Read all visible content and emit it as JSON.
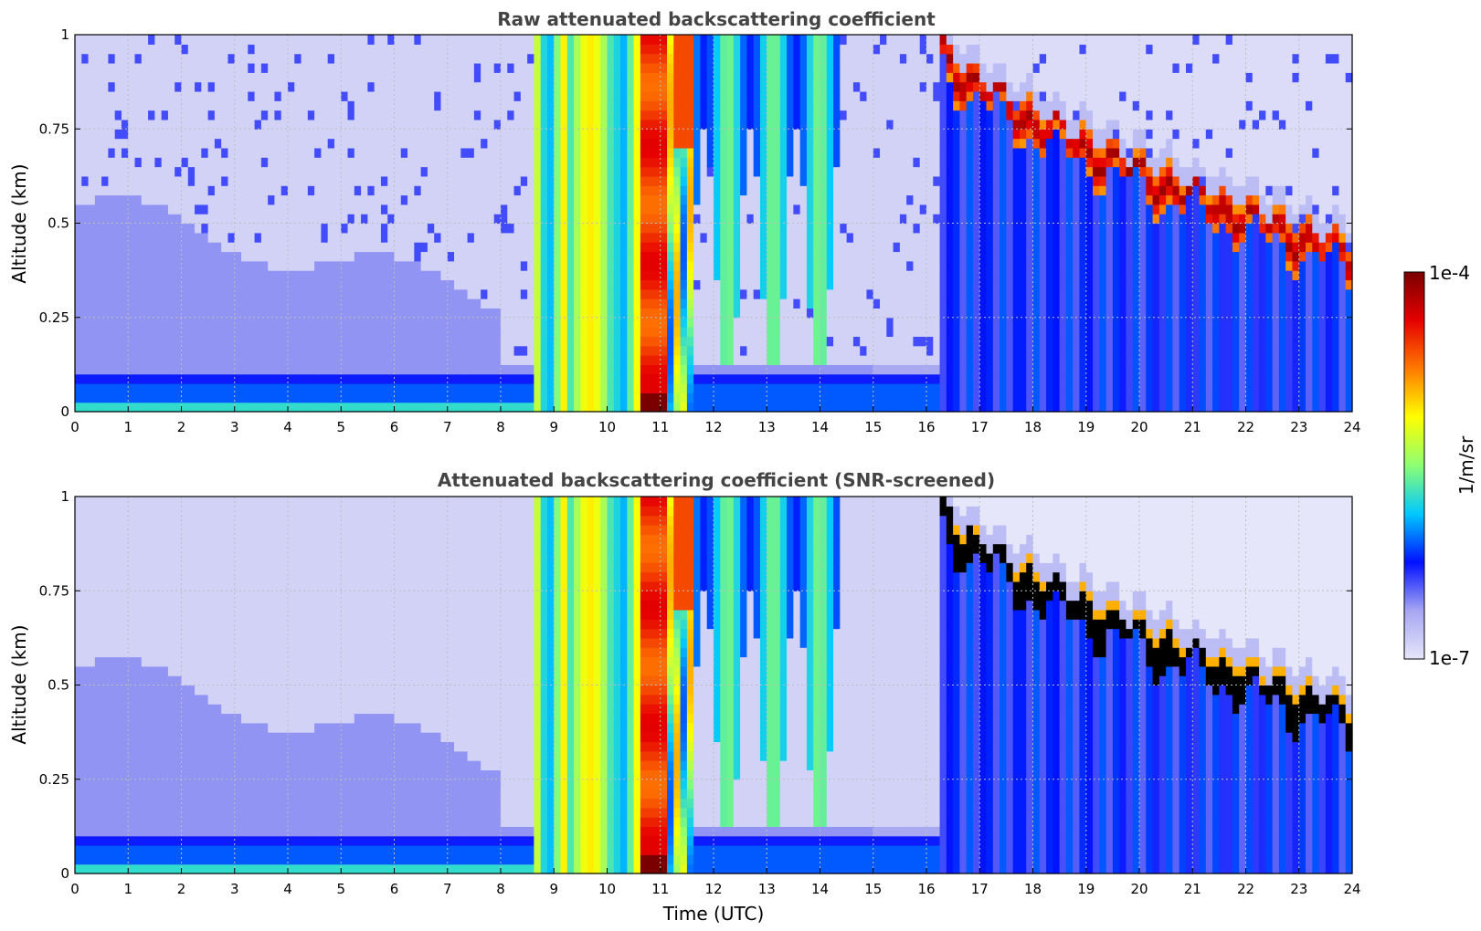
{
  "chart_data": [
    {
      "type": "heatmap",
      "title": "Raw attenuated backscattering coefficient",
      "xlabel": "",
      "ylabel": "Altitude (km)",
      "xlim": [
        0,
        24
      ],
      "ylim": [
        0,
        1
      ],
      "x_ticks": [
        "0",
        "1",
        "2",
        "3",
        "4",
        "5",
        "6",
        "7",
        "8",
        "9",
        "10",
        "11",
        "12",
        "13",
        "14",
        "15",
        "16",
        "17",
        "18",
        "19",
        "20",
        "21",
        "22",
        "23",
        "24"
      ],
      "y_ticks": [
        "0",
        "0.25",
        "0.5",
        "0.75",
        "1"
      ],
      "grid": true,
      "features": [
        {
          "t0": 8.6,
          "t1": 11.6,
          "z0": 0,
          "z1": 1,
          "level": 0.62
        },
        {
          "t0": 10.6,
          "t1": 11.1,
          "z0": 0,
          "z1": 0.9,
          "level": 0.88
        },
        {
          "t0": 11.6,
          "t1": 14.4,
          "z0": 0.1,
          "z1": 1,
          "level": 0.28
        },
        {
          "t0": 16.3,
          "t1": 24,
          "layer_top": [
            1.0,
            0.45,
            0.3
          ],
          "level": 0.96
        }
      ]
    },
    {
      "type": "heatmap",
      "title": "Attenuated backscattering coefficient (SNR-screened)",
      "xlabel": "Time (UTC)",
      "ylabel": "Altitude (km)",
      "xlim": [
        0,
        24
      ],
      "ylim": [
        0,
        1
      ],
      "x_ticks": [
        "0",
        "1",
        "2",
        "3",
        "4",
        "5",
        "6",
        "7",
        "8",
        "9",
        "10",
        "11",
        "12",
        "13",
        "14",
        "15",
        "16",
        "17",
        "18",
        "19",
        "20",
        "21",
        "22",
        "23",
        "24"
      ],
      "y_ticks": [
        "0",
        "0.25",
        "0.5",
        "0.75",
        "1"
      ],
      "grid": true,
      "features": [
        {
          "t0": 8.6,
          "t1": 11.6,
          "z0": 0,
          "z1": 1,
          "level": 0.62
        },
        {
          "t0": 10.6,
          "t1": 11.1,
          "z0": 0,
          "z1": 0.9,
          "level": 0.88
        },
        {
          "t0": 11.6,
          "t1": 14.4,
          "z0": 0.1,
          "z1": 1,
          "level": 0.28
        },
        {
          "t0": 16.3,
          "t1": 24,
          "layer_top": [
            1.0,
            0.45,
            0.3
          ],
          "level": 1.0
        }
      ]
    }
  ],
  "colorbar": {
    "label": "1/m/sr",
    "max_label": "1e-4",
    "min_label": "1e-7",
    "scale": "log",
    "colormap": [
      "#e6e6fa",
      "#a6a6f2",
      "#0010ff",
      "#00c8ff",
      "#8cff73",
      "#ffff00",
      "#ff7a00",
      "#e60000",
      "#7a0000"
    ]
  }
}
